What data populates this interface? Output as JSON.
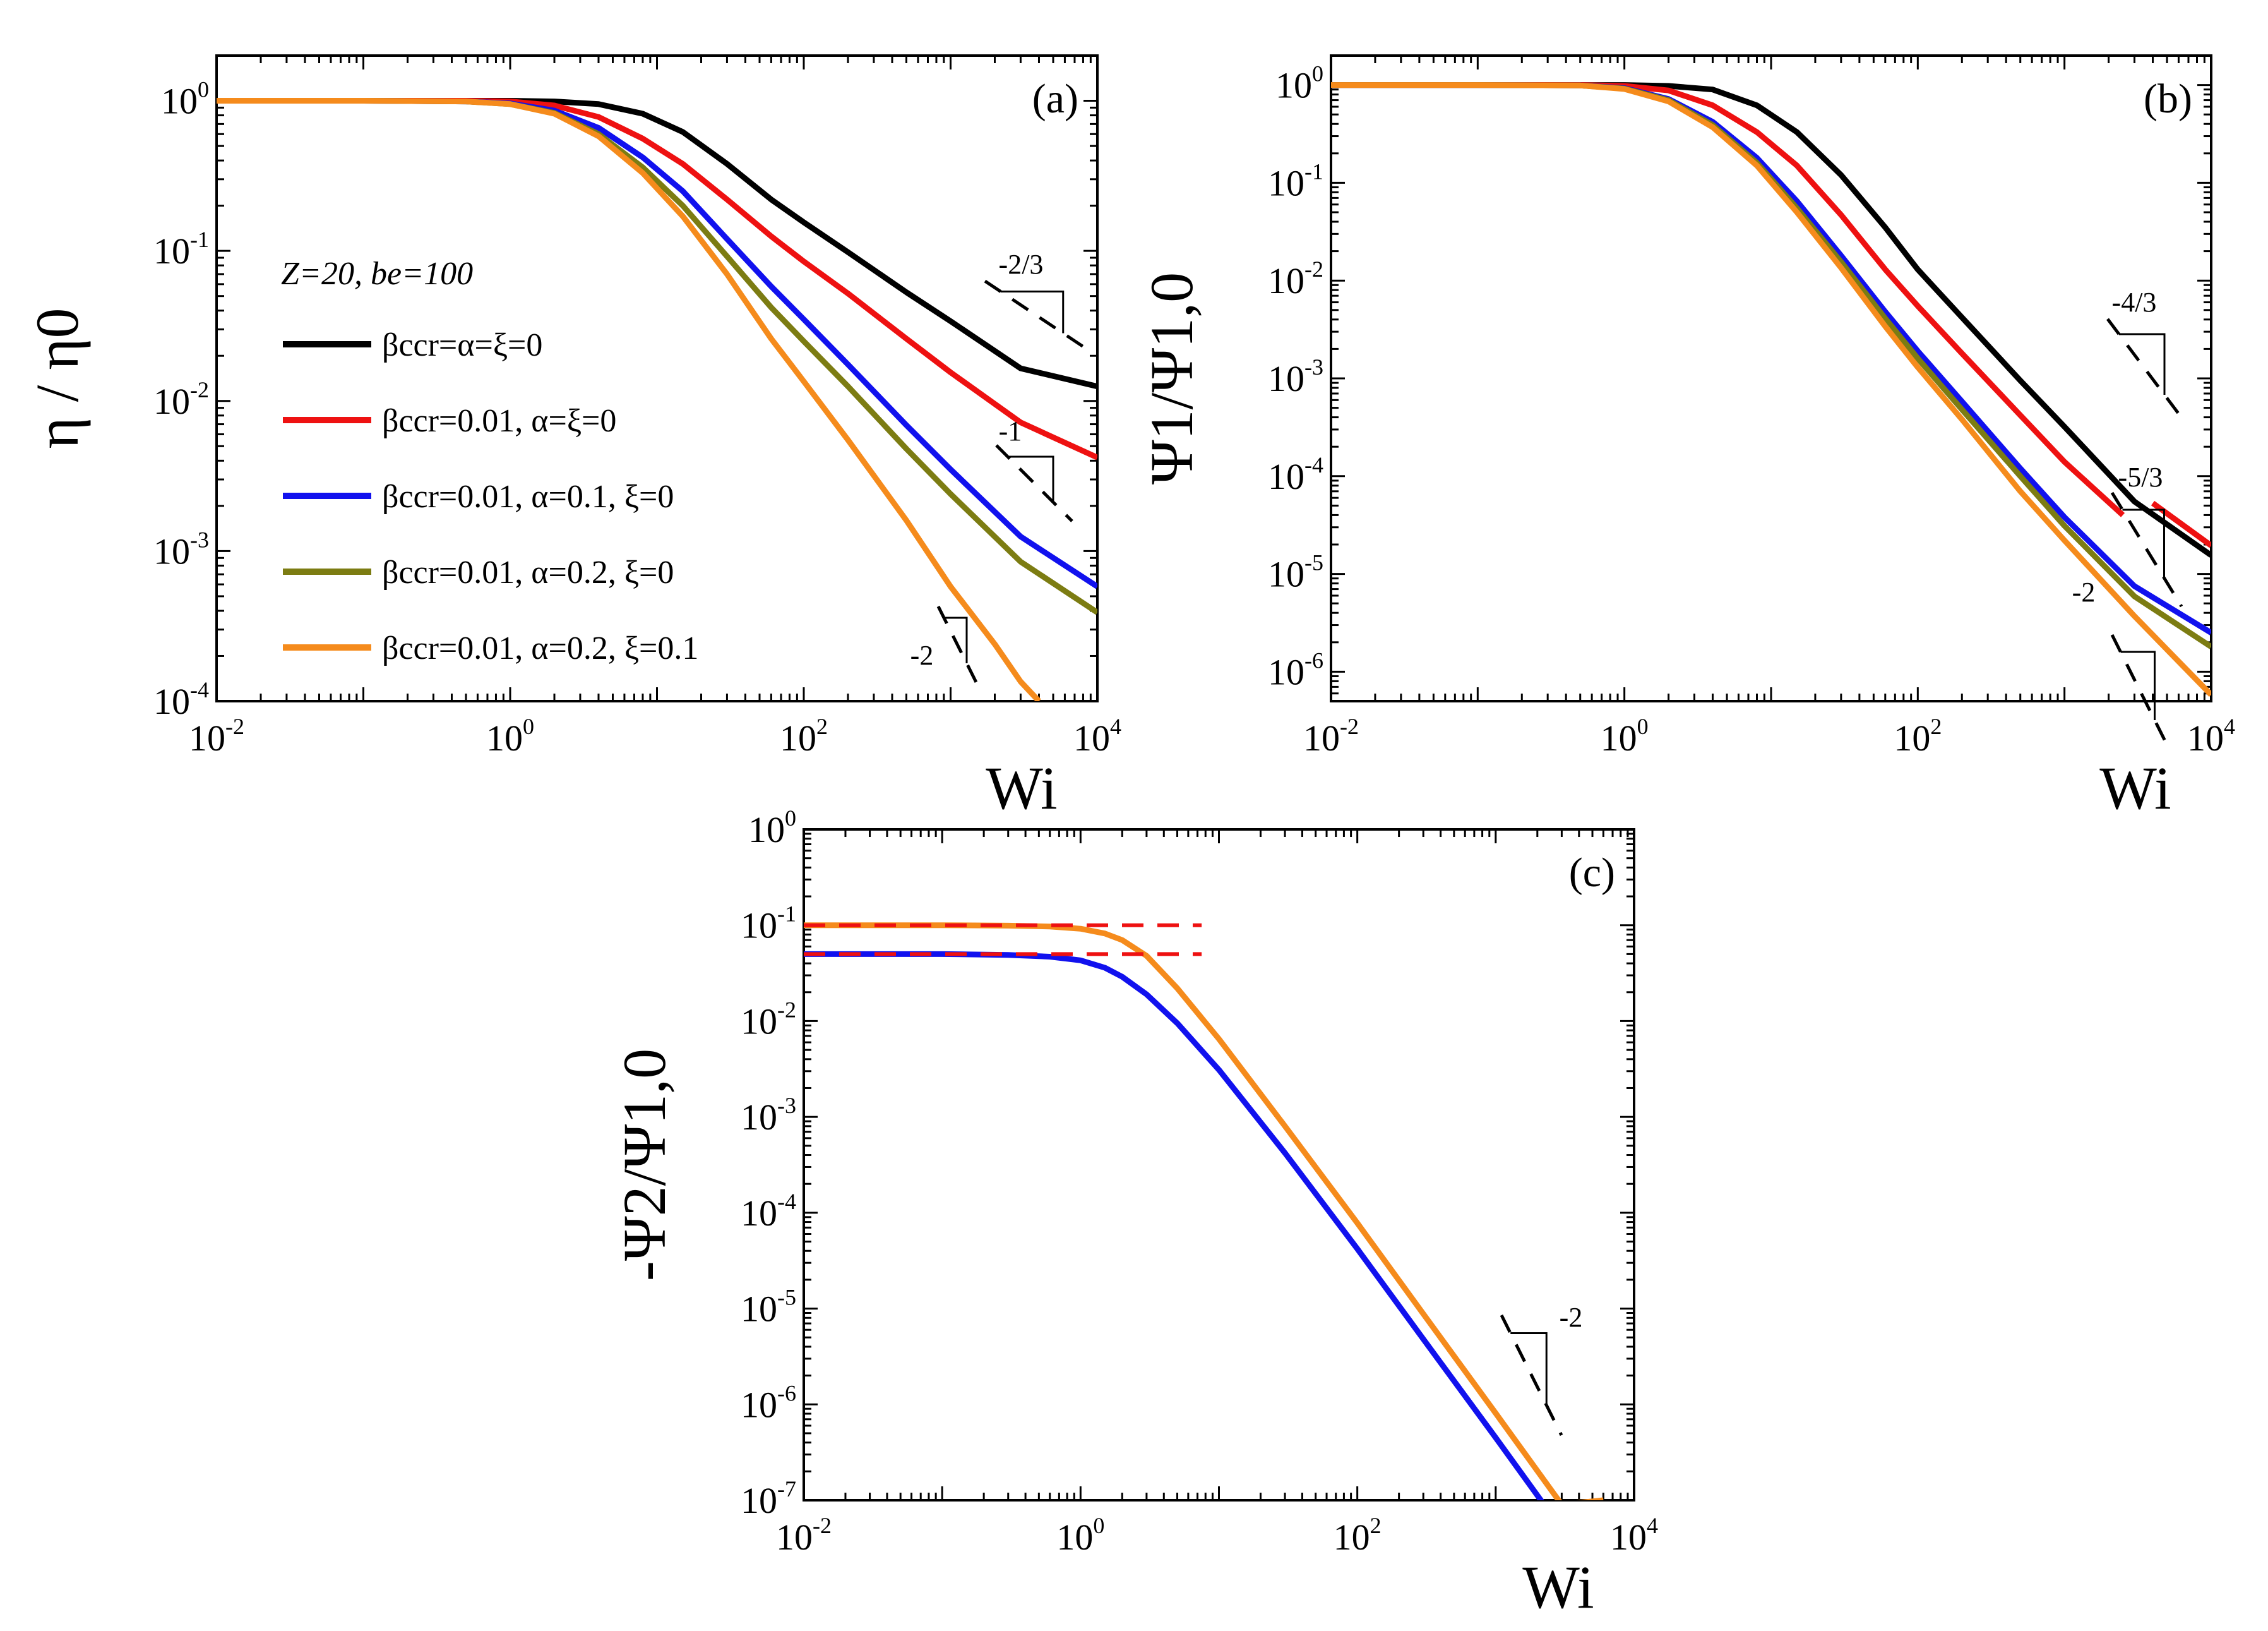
{
  "chart_data": [
    {
      "panel": "(a)",
      "type": "line",
      "xlabel": "Wi",
      "ylabel": "η / η0",
      "xscale": "log",
      "yscale": "log",
      "xlim": [
        0.01,
        10000
      ],
      "ylim": [
        0.0001,
        2
      ],
      "x_ticks": [
        "-2",
        "0",
        "2",
        "4"
      ],
      "y_ticks": [
        "0",
        "-1",
        "-2",
        "-3",
        "-4"
      ],
      "legend_title": "Z=20, be=100",
      "legend_placement": "center-left",
      "series": [
        {
          "name": "βccr=α=ξ=0",
          "color": "#000000",
          "x": [
            0.01,
            0.1,
            0.5,
            1,
            2,
            4,
            8,
            15,
            30,
            60,
            100,
            200,
            500,
            1000,
            3000,
            10000
          ],
          "y": [
            1,
            1,
            1,
            1,
            0.99,
            0.95,
            0.82,
            0.62,
            0.38,
            0.22,
            0.155,
            0.098,
            0.053,
            0.034,
            0.0165,
            0.0125
          ]
        },
        {
          "name": "βccr=0.01, α=ξ=0",
          "color": "#ee1111",
          "x": [
            0.01,
            0.1,
            0.5,
            1,
            2,
            4,
            8,
            15,
            30,
            60,
            100,
            200,
            500,
            1000,
            3000,
            10000
          ],
          "y": [
            1,
            1,
            1,
            0.99,
            0.93,
            0.78,
            0.56,
            0.38,
            0.22,
            0.125,
            0.085,
            0.052,
            0.026,
            0.0155,
            0.0072,
            0.0042
          ]
        },
        {
          "name": "βccr=0.01, α=0.1, ξ=0",
          "color": "#1111ee",
          "x": [
            0.01,
            0.1,
            0.5,
            1,
            2,
            4,
            8,
            15,
            30,
            60,
            100,
            200,
            500,
            1000,
            3000,
            10000
          ],
          "y": [
            1,
            1,
            0.99,
            0.96,
            0.86,
            0.66,
            0.42,
            0.25,
            0.12,
            0.058,
            0.035,
            0.0175,
            0.0069,
            0.0035,
            0.00125,
            0.00058
          ]
        },
        {
          "name": "βccr=0.01, α=0.2, ξ=0",
          "color": "#7c7c12",
          "x": [
            0.01,
            0.1,
            0.5,
            1,
            2,
            4,
            8,
            15,
            30,
            60,
            100,
            200,
            500,
            1000,
            3000,
            10000
          ],
          "y": [
            1,
            1,
            0.99,
            0.95,
            0.83,
            0.6,
            0.36,
            0.2,
            0.092,
            0.042,
            0.025,
            0.0125,
            0.0048,
            0.0024,
            0.00085,
            0.00039
          ]
        },
        {
          "name": "βccr=0.01, α=0.2, ξ=0.1",
          "color": "#f58b1c",
          "x": [
            0.01,
            0.1,
            0.5,
            1,
            2,
            4,
            8,
            15,
            30,
            60,
            100,
            200,
            500,
            1000,
            2000,
            3000,
            4000
          ],
          "y": [
            1,
            1,
            0.99,
            0.95,
            0.82,
            0.58,
            0.33,
            0.17,
            0.07,
            0.026,
            0.0135,
            0.0055,
            0.0016,
            0.00058,
            0.00024,
            0.000135,
            0.0001
          ]
        }
      ],
      "slope_annotations": [
        "-2/3",
        "-1",
        "-2"
      ]
    },
    {
      "panel": "(b)",
      "type": "line",
      "xlabel": "Wi",
      "ylabel": "Ψ1/Ψ1,0",
      "xscale": "log",
      "yscale": "log",
      "xlim": [
        0.01,
        10000
      ],
      "ylim": [
        5e-07,
        2
      ],
      "x_ticks": [
        "-2",
        "0",
        "2",
        "4"
      ],
      "y_ticks": [
        "0",
        "-1",
        "-2",
        "-3",
        "-4",
        "-5",
        "-6"
      ],
      "series": [
        {
          "name": "βccr=α=ξ=0",
          "color": "#000000",
          "x": [
            0.01,
            0.1,
            0.5,
            1,
            2,
            4,
            8,
            15,
            30,
            60,
            100,
            200,
            500,
            1000,
            3000,
            10000
          ],
          "y": [
            1,
            1,
            1,
            1,
            0.98,
            0.9,
            0.62,
            0.33,
            0.12,
            0.035,
            0.013,
            0.0042,
            0.00095,
            0.00032,
            5.5e-05,
            1.55e-05
          ]
        },
        {
          "name": "βccr=0.01, α=ξ=0",
          "color": "#ee1111",
          "x": [
            0.01,
            0.1,
            0.5,
            1,
            2,
            4,
            8,
            15,
            30,
            60,
            100,
            200,
            500,
            1000,
            2500
          ],
          "y": [
            1,
            1,
            1,
            0.98,
            0.88,
            0.62,
            0.33,
            0.15,
            0.047,
            0.013,
            0.0055,
            0.0018,
            0.00042,
            0.00014,
            4e-05
          ]
        },
        {
          "name": "βccr=0.01, α=0.1, ξ=0",
          "color": "#1111ee",
          "x": [
            0.01,
            0.1,
            0.5,
            1,
            2,
            4,
            8,
            15,
            30,
            60,
            100,
            200,
            500,
            1000,
            3000,
            10000
          ],
          "y": [
            1,
            1,
            0.99,
            0.93,
            0.72,
            0.42,
            0.18,
            0.065,
            0.018,
            0.0048,
            0.0019,
            0.00058,
            0.00012,
            3.8e-05,
            7.5e-06,
            2.5e-06
          ]
        },
        {
          "name": "βccr=0.01, α=0.2, ξ=0",
          "color": "#7c7c12",
          "x": [
            0.01,
            0.1,
            0.5,
            1,
            2,
            4,
            8,
            15,
            30,
            60,
            100,
            200,
            500,
            1000,
            3000,
            10000
          ],
          "y": [
            1,
            1,
            0.99,
            0.92,
            0.7,
            0.39,
            0.16,
            0.055,
            0.0155,
            0.0041,
            0.0016,
            0.00048,
            0.0001,
            3.1e-05,
            5.9e-06,
            1.8e-06
          ]
        },
        {
          "name": "βccr=0.01, α=0.2, ξ=0.1",
          "color": "#f58b1c",
          "x": [
            0.01,
            0.1,
            0.5,
            1,
            2,
            4,
            8,
            15,
            30,
            60,
            100,
            200,
            500,
            1000,
            3000,
            10000
          ],
          "y": [
            1,
            1,
            0.99,
            0.91,
            0.68,
            0.37,
            0.15,
            0.05,
            0.0135,
            0.0034,
            0.0013,
            0.00038,
            7e-05,
            2.2e-05,
            3.7e-06,
            5.8e-07
          ]
        },
        {
          "name": "",
          "color": "#ee1111",
          "x": [
            4000,
            10000
          ],
          "y": [
            5.3e-05,
            1.95e-05
          ]
        }
      ],
      "slope_annotations": [
        "-4/3",
        "-5/3",
        "-2"
      ]
    },
    {
      "panel": "(c)",
      "type": "line",
      "xlabel": "Wi",
      "ylabel": "-Ψ2/Ψ1,0",
      "xscale": "log",
      "yscale": "log",
      "xlim": [
        0.01,
        10000
      ],
      "ylim": [
        1e-07,
        1
      ],
      "x_ticks": [
        "-2",
        "0",
        "2",
        "4"
      ],
      "y_ticks": [
        "0",
        "-1",
        "-2",
        "-3",
        "-4",
        "-5",
        "-6",
        "-7"
      ],
      "series": [
        {
          "name": "",
          "color": "#1111ee",
          "x": [
            0.01,
            0.1,
            0.3,
            0.6,
            1,
            1.5,
            2,
            3,
            5,
            10,
            30,
            100,
            300,
            1000,
            3000,
            6000
          ],
          "y": [
            0.05,
            0.05,
            0.049,
            0.047,
            0.043,
            0.036,
            0.029,
            0.019,
            0.0095,
            0.0031,
            0.00042,
            4.2e-05,
            4.8e-06,
            4.5e-07,
            5e-08,
            1e-07
          ]
        },
        {
          "name": "",
          "color": "#f58b1c",
          "x": [
            0.01,
            0.1,
            0.3,
            0.6,
            1,
            1.5,
            2,
            3,
            5,
            10,
            30,
            100,
            300,
            1000,
            3000,
            6000
          ],
          "y": [
            0.1,
            0.1,
            0.099,
            0.097,
            0.092,
            0.082,
            0.07,
            0.048,
            0.022,
            0.0065,
            0.0008,
            7.8e-05,
            8.8e-06,
            8.1e-07,
            9e-08,
            1e-07
          ]
        },
        {
          "name": "",
          "color": "#ee1111",
          "style": "dashed",
          "x": [
            0.01,
            7.5
          ],
          "y": [
            0.1,
            0.1
          ]
        },
        {
          "name": "",
          "color": "#ee1111",
          "style": "dashed",
          "x": [
            0.01,
            7.5
          ],
          "y": [
            0.05,
            0.05
          ]
        }
      ],
      "slope_annotations": [
        "-2"
      ]
    }
  ]
}
